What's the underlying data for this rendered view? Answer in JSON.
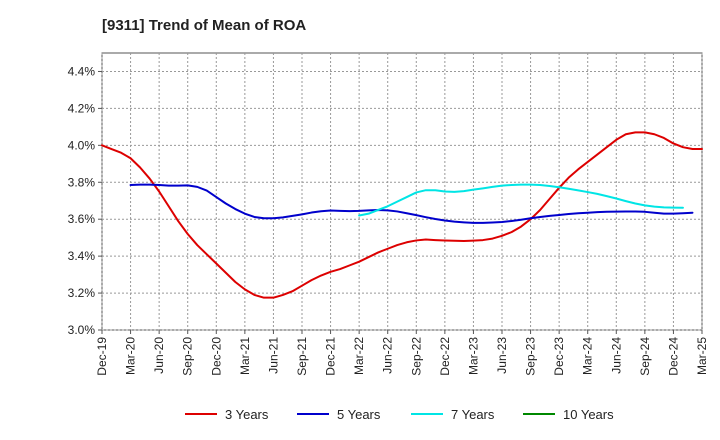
{
  "chart_data": {
    "type": "line",
    "title": "[9311]  Trend of Mean of ROA",
    "xlabel": "",
    "ylabel": "",
    "x_ticks": [
      "Dec-19",
      "Mar-20",
      "Jun-20",
      "Sep-20",
      "Dec-20",
      "Mar-21",
      "Jun-21",
      "Sep-21",
      "Dec-21",
      "Mar-22",
      "Jun-22",
      "Sep-22",
      "Dec-22",
      "Mar-23",
      "Jun-23",
      "Sep-23",
      "Dec-23",
      "Mar-24",
      "Jun-24",
      "Sep-24",
      "Dec-24",
      "Mar-25"
    ],
    "y_ticks": [
      "3.0%",
      "3.2%",
      "3.4%",
      "3.6%",
      "3.8%",
      "4.0%",
      "4.2%",
      "4.4%"
    ],
    "ylim": [
      3.0,
      4.5
    ],
    "grid": true,
    "legend_position": "bottom",
    "series": [
      {
        "name": "3 Years",
        "color": "#dd0000",
        "start_index": 0,
        "values": [
          4.0,
          3.98,
          3.96,
          3.93,
          3.88,
          3.82,
          3.75,
          3.67,
          3.59,
          3.52,
          3.46,
          3.41,
          3.36,
          3.31,
          3.26,
          3.22,
          3.19,
          3.175,
          3.175,
          3.19,
          3.21,
          3.24,
          3.27,
          3.295,
          3.315,
          3.33,
          3.35,
          3.37,
          3.395,
          3.42,
          3.44,
          3.46,
          3.475,
          3.485,
          3.49,
          3.487,
          3.485,
          3.483,
          3.482,
          3.484,
          3.487,
          3.495,
          3.51,
          3.53,
          3.56,
          3.6,
          3.65,
          3.71,
          3.77,
          3.825,
          3.87,
          3.91,
          3.95,
          3.99,
          4.03,
          4.06,
          4.07,
          4.07,
          4.06,
          4.04,
          4.01,
          3.99,
          3.98,
          3.98
        ]
      },
      {
        "name": "5 Years",
        "color": "#0000cc",
        "start_index": 3,
        "values": [
          3.785,
          3.787,
          3.787,
          3.785,
          3.782,
          3.782,
          3.783,
          3.775,
          3.755,
          3.72,
          3.685,
          3.655,
          3.63,
          3.612,
          3.605,
          3.605,
          3.61,
          3.618,
          3.626,
          3.636,
          3.643,
          3.647,
          3.645,
          3.644,
          3.645,
          3.648,
          3.65,
          3.648,
          3.642,
          3.632,
          3.622,
          3.611,
          3.601,
          3.593,
          3.587,
          3.583,
          3.58,
          3.58,
          3.582,
          3.585,
          3.59,
          3.597,
          3.605,
          3.612,
          3.618,
          3.623,
          3.628,
          3.632,
          3.635,
          3.638,
          3.64,
          3.641,
          3.642,
          3.642,
          3.64,
          3.635,
          3.63,
          3.63,
          3.632,
          3.635
        ]
      },
      {
        "name": "7 Years",
        "color": "#00e5e5",
        "start_index": 27,
        "values": [
          3.62,
          3.63,
          3.65,
          3.67,
          3.695,
          3.72,
          3.745,
          3.757,
          3.757,
          3.75,
          3.748,
          3.752,
          3.76,
          3.767,
          3.775,
          3.782,
          3.785,
          3.787,
          3.787,
          3.785,
          3.78,
          3.773,
          3.765,
          3.756,
          3.747,
          3.737,
          3.725,
          3.712,
          3.698,
          3.685,
          3.675,
          3.668,
          3.664,
          3.663,
          3.662
        ]
      },
      {
        "name": "10 Years",
        "color": "#008800",
        "start_index": 0,
        "values": []
      }
    ]
  }
}
